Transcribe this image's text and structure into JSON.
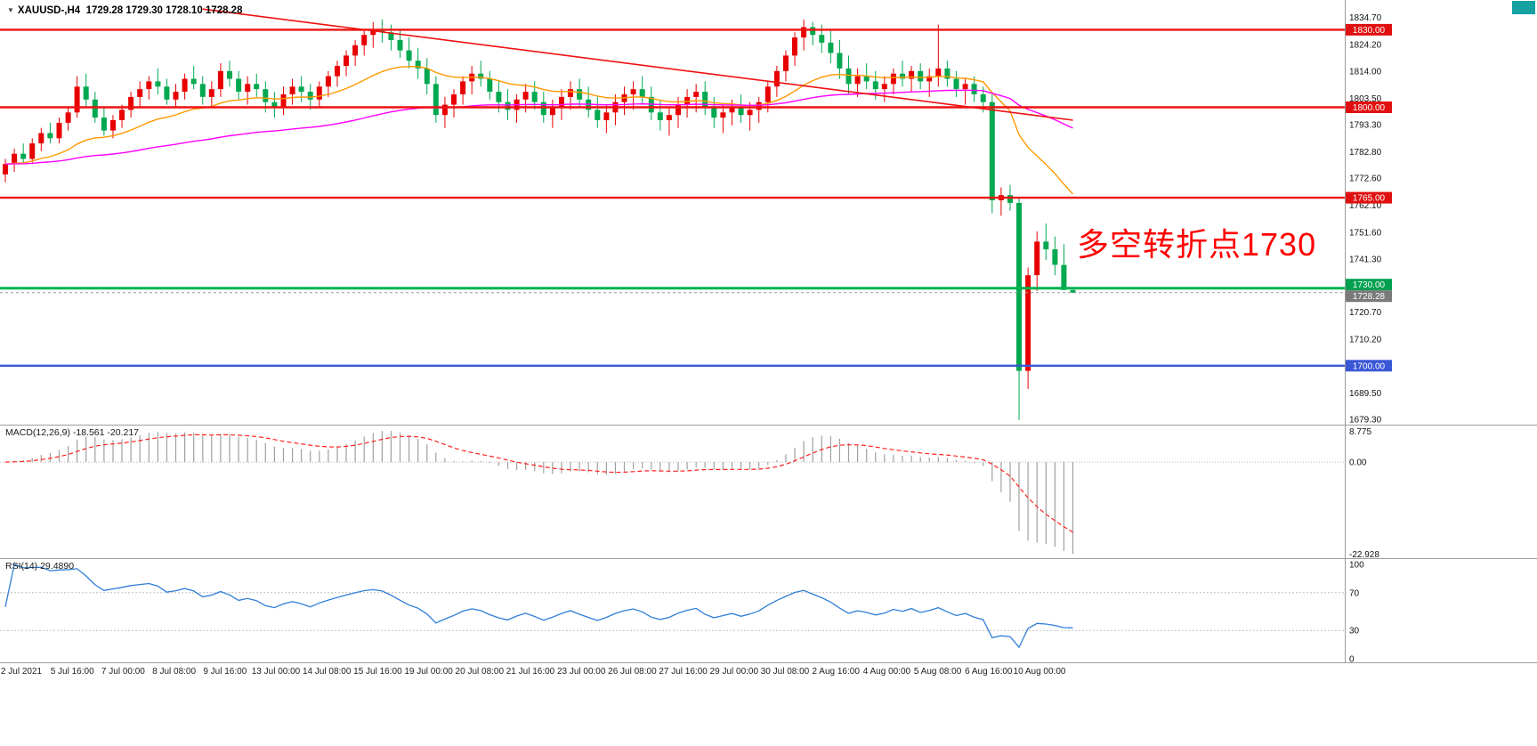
{
  "header": {
    "symbol": "XAUUSD-,H4",
    "ohlc": "1729.28 1729.30 1728.10 1728.28"
  },
  "annotation": {
    "text": "多空转折点1730",
    "color": "#ff0000"
  },
  "indicators": {
    "macd": {
      "label": "MACD(12,26,9) -18.561 -20.217",
      "fast": 12,
      "slow": 26,
      "signal": 9,
      "macd_value": -18.561,
      "signal_value": -20.217
    },
    "rsi": {
      "label": "RSI(14) 29.4890",
      "period": 14,
      "value": 29.489
    }
  },
  "axis": {
    "price_ticks": [
      {
        "label": "1834.70",
        "value": 1834.7
      },
      {
        "label": "1824.20",
        "value": 1824.2
      },
      {
        "label": "1814.00",
        "value": 1814.0
      },
      {
        "label": "1803.50",
        "value": 1803.5
      },
      {
        "label": "1793.30",
        "value": 1793.3
      },
      {
        "label": "1782.80",
        "value": 1782.8
      },
      {
        "label": "1772.60",
        "value": 1772.6
      },
      {
        "label": "1762.10",
        "value": 1762.1
      },
      {
        "label": "1751.60",
        "value": 1751.6
      },
      {
        "label": "1741.30",
        "value": 1741.3
      },
      {
        "label": "1720.70",
        "value": 1720.7
      },
      {
        "label": "1710.20",
        "value": 1710.2
      },
      {
        "label": "1689.50",
        "value": 1689.5
      },
      {
        "label": "1679.30",
        "value": 1679.3
      }
    ],
    "badges": [
      {
        "label": "1830.00",
        "price": 1830.0,
        "bg": "#e01010",
        "dy": 0
      },
      {
        "label": "1800.00",
        "price": 1800.0,
        "bg": "#e01010",
        "dy": 0
      },
      {
        "label": "1765.00",
        "price": 1765.0,
        "bg": "#e01010",
        "dy": 0
      },
      {
        "label": "1730.00",
        "price": 1730.0,
        "bg": "#00a050",
        "dy": -4
      },
      {
        "label": "1728.28",
        "price": 1728.28,
        "bg": "#7a7a7a",
        "dy": 4
      },
      {
        "label": "1700.00",
        "price": 1700.0,
        "bg": "#3a57d6",
        "dy": 0
      }
    ],
    "macd_ticks": [
      {
        "label": "8.775",
        "pos": "max"
      },
      {
        "label": "0.00",
        "pos": "zero"
      },
      {
        "label": "-22.928",
        "pos": "min"
      }
    ],
    "rsi_ticks": [
      {
        "label": "100",
        "value": 100
      },
      {
        "label": "70",
        "value": 70
      },
      {
        "label": "30",
        "value": 30
      },
      {
        "label": "0",
        "value": 0
      }
    ],
    "time_labels": [
      "2 Jul 2021",
      "5 Jul 16:00",
      "7 Jul 00:00",
      "8 Jul 08:00",
      "9 Jul 16:00",
      "13 Jul 00:00",
      "14 Jul 08:00",
      "15 Jul 16:00",
      "19 Jul 00:00",
      "20 Jul 08:00",
      "21 Jul 16:00",
      "23 Jul 00:00",
      "26 Jul 08:00",
      "27 Jul 16:00",
      "29 Jul 00:00",
      "30 Jul 08:00",
      "2 Aug 16:00",
      "4 Aug 00:00",
      "5 Aug 08:00",
      "6 Aug 16:00",
      "10 Aug 00:00"
    ]
  },
  "chart_data": {
    "type": "candlestick",
    "symbol": "XAUUSD-",
    "timeframe": "H4",
    "ylim": [
      1677.2,
      1841.5
    ],
    "current": {
      "open": 1729.28,
      "high": 1729.3,
      "low": 1728.1,
      "close": 1728.28
    },
    "colors": {
      "bull": "#e80000",
      "bear": "#00a84f"
    },
    "color_note": "red = bullish, green = bearish",
    "hlines": [
      {
        "price": 1830.0,
        "color": "#ee1111",
        "width": 2.4
      },
      {
        "price": 1800.0,
        "color": "#ee1111",
        "width": 2.4
      },
      {
        "price": 1765.0,
        "color": "#ee1111",
        "width": 2.4
      },
      {
        "price": 1730.0,
        "color": "#00b14f",
        "width": 3
      },
      {
        "price": 1700.0,
        "color": "#3a57d6",
        "width": 2.4
      }
    ],
    "trendline": {
      "from_index": 22,
      "from_price": 1838,
      "to_index": 119,
      "to_price": 1795,
      "color": "#ee1111"
    },
    "moving_averages": [
      {
        "name": "ma-fast-orange",
        "period": 21,
        "color": "#ff9900"
      },
      {
        "name": "ma-slow-magenta",
        "period": 80,
        "color": "#ff00ff"
      }
    ],
    "macd_range": [
      -22.928,
      8.775
    ],
    "rsi_levels": [
      70,
      30
    ],
    "candles": [
      [
        1774,
        1780,
        1771,
        1778
      ],
      [
        1778,
        1784,
        1775,
        1782
      ],
      [
        1782,
        1786,
        1778,
        1780
      ],
      [
        1780,
        1788,
        1778,
        1786
      ],
      [
        1786,
        1792,
        1783,
        1790
      ],
      [
        1790,
        1794,
        1786,
        1788
      ],
      [
        1788,
        1796,
        1786,
        1794
      ],
      [
        1794,
        1800,
        1791,
        1798
      ],
      [
        1798,
        1812,
        1796,
        1808
      ],
      [
        1808,
        1813,
        1800,
        1803
      ],
      [
        1803,
        1806,
        1794,
        1796
      ],
      [
        1796,
        1800,
        1789,
        1791
      ],
      [
        1791,
        1797,
        1788,
        1795
      ],
      [
        1795,
        1801,
        1792,
        1799
      ],
      [
        1799,
        1806,
        1796,
        1804
      ],
      [
        1804,
        1810,
        1800,
        1807
      ],
      [
        1807,
        1812,
        1803,
        1810
      ],
      [
        1810,
        1815,
        1805,
        1808
      ],
      [
        1808,
        1811,
        1801,
        1803
      ],
      [
        1803,
        1809,
        1800,
        1806
      ],
      [
        1806,
        1813,
        1803,
        1811
      ],
      [
        1811,
        1816,
        1807,
        1809
      ],
      [
        1809,
        1812,
        1801,
        1804
      ],
      [
        1804,
        1810,
        1800,
        1807
      ],
      [
        1807,
        1817,
        1804,
        1814
      ],
      [
        1814,
        1818,
        1808,
        1811
      ],
      [
        1811,
        1814,
        1803,
        1806
      ],
      [
        1806,
        1812,
        1801,
        1809
      ],
      [
        1809,
        1813,
        1804,
        1807
      ],
      [
        1807,
        1810,
        1798,
        1802
      ],
      [
        1802,
        1806,
        1796,
        1800
      ],
      [
        1800,
        1808,
        1797,
        1805
      ],
      [
        1805,
        1811,
        1801,
        1808
      ],
      [
        1808,
        1812,
        1802,
        1806
      ],
      [
        1806,
        1809,
        1799,
        1803
      ],
      [
        1803,
        1810,
        1800,
        1808
      ],
      [
        1808,
        1814,
        1804,
        1812
      ],
      [
        1812,
        1818,
        1808,
        1816
      ],
      [
        1816,
        1822,
        1812,
        1820
      ],
      [
        1820,
        1826,
        1816,
        1824
      ],
      [
        1824,
        1830,
        1820,
        1828
      ],
      [
        1828,
        1833,
        1823,
        1830
      ],
      [
        1830,
        1834,
        1825,
        1829
      ],
      [
        1829,
        1832,
        1822,
        1826
      ],
      [
        1826,
        1830,
        1819,
        1822
      ],
      [
        1822,
        1827,
        1815,
        1818
      ],
      [
        1818,
        1823,
        1811,
        1815
      ],
      [
        1815,
        1819,
        1805,
        1809
      ],
      [
        1809,
        1812,
        1794,
        1797
      ],
      [
        1797,
        1804,
        1792,
        1801
      ],
      [
        1801,
        1807,
        1796,
        1805
      ],
      [
        1805,
        1812,
        1801,
        1810
      ],
      [
        1810,
        1816,
        1805,
        1813
      ],
      [
        1813,
        1818,
        1808,
        1811
      ],
      [
        1811,
        1814,
        1803,
        1806
      ],
      [
        1806,
        1810,
        1798,
        1802
      ],
      [
        1802,
        1807,
        1795,
        1799
      ],
      [
        1799,
        1805,
        1794,
        1803
      ],
      [
        1803,
        1809,
        1798,
        1806
      ],
      [
        1806,
        1810,
        1799,
        1802
      ],
      [
        1802,
        1806,
        1794,
        1797
      ],
      [
        1797,
        1803,
        1792,
        1800
      ],
      [
        1800,
        1807,
        1795,
        1804
      ],
      [
        1804,
        1810,
        1799,
        1807
      ],
      [
        1807,
        1811,
        1800,
        1803
      ],
      [
        1803,
        1808,
        1796,
        1799
      ],
      [
        1799,
        1804,
        1792,
        1795
      ],
      [
        1795,
        1801,
        1790,
        1798
      ],
      [
        1798,
        1805,
        1793,
        1802
      ],
      [
        1802,
        1808,
        1797,
        1805
      ],
      [
        1805,
        1810,
        1799,
        1807
      ],
      [
        1807,
        1812,
        1801,
        1804
      ],
      [
        1804,
        1808,
        1795,
        1798
      ],
      [
        1798,
        1803,
        1791,
        1795
      ],
      [
        1795,
        1800,
        1789,
        1797
      ],
      [
        1797,
        1804,
        1792,
        1801
      ],
      [
        1801,
        1807,
        1796,
        1804
      ],
      [
        1804,
        1809,
        1798,
        1806
      ],
      [
        1806,
        1810,
        1797,
        1800
      ],
      [
        1800,
        1804,
        1792,
        1796
      ],
      [
        1796,
        1801,
        1790,
        1798
      ],
      [
        1798,
        1803,
        1793,
        1800
      ],
      [
        1800,
        1805,
        1794,
        1797
      ],
      [
        1797,
        1802,
        1791,
        1799
      ],
      [
        1799,
        1804,
        1794,
        1802
      ],
      [
        1802,
        1810,
        1798,
        1808
      ],
      [
        1808,
        1816,
        1804,
        1814
      ],
      [
        1814,
        1822,
        1810,
        1820
      ],
      [
        1820,
        1829,
        1816,
        1827
      ],
      [
        1827,
        1834,
        1822,
        1831
      ],
      [
        1831,
        1833,
        1824,
        1828
      ],
      [
        1828,
        1832,
        1821,
        1825
      ],
      [
        1825,
        1830,
        1817,
        1821
      ],
      [
        1821,
        1826,
        1811,
        1815
      ],
      [
        1815,
        1820,
        1805,
        1809
      ],
      [
        1809,
        1815,
        1804,
        1812
      ],
      [
        1812,
        1817,
        1807,
        1810
      ],
      [
        1810,
        1814,
        1803,
        1807
      ],
      [
        1807,
        1812,
        1802,
        1809
      ],
      [
        1809,
        1815,
        1805,
        1813
      ],
      [
        1813,
        1818,
        1808,
        1811
      ],
      [
        1811,
        1816,
        1806,
        1814
      ],
      [
        1814,
        1817,
        1807,
        1810
      ],
      [
        1810,
        1815,
        1804,
        1812
      ],
      [
        1812,
        1832,
        1808,
        1815
      ],
      [
        1815,
        1818,
        1808,
        1811
      ],
      [
        1811,
        1814,
        1804,
        1807
      ],
      [
        1807,
        1811,
        1801,
        1809
      ],
      [
        1809,
        1812,
        1802,
        1805
      ],
      [
        1805,
        1808,
        1798,
        1802
      ],
      [
        1802,
        1805,
        1759,
        1764
      ],
      [
        1764,
        1769,
        1758,
        1766
      ],
      [
        1766,
        1770,
        1760,
        1763
      ],
      [
        1763,
        1765,
        1679,
        1698
      ],
      [
        1698,
        1738,
        1691,
        1735
      ],
      [
        1735,
        1752,
        1729,
        1748
      ],
      [
        1748,
        1755,
        1741,
        1745
      ],
      [
        1745,
        1750,
        1735,
        1739
      ],
      [
        1739,
        1747,
        1732,
        1729.3
      ],
      [
        1729.28,
        1729.3,
        1728.1,
        1728.28
      ]
    ]
  }
}
